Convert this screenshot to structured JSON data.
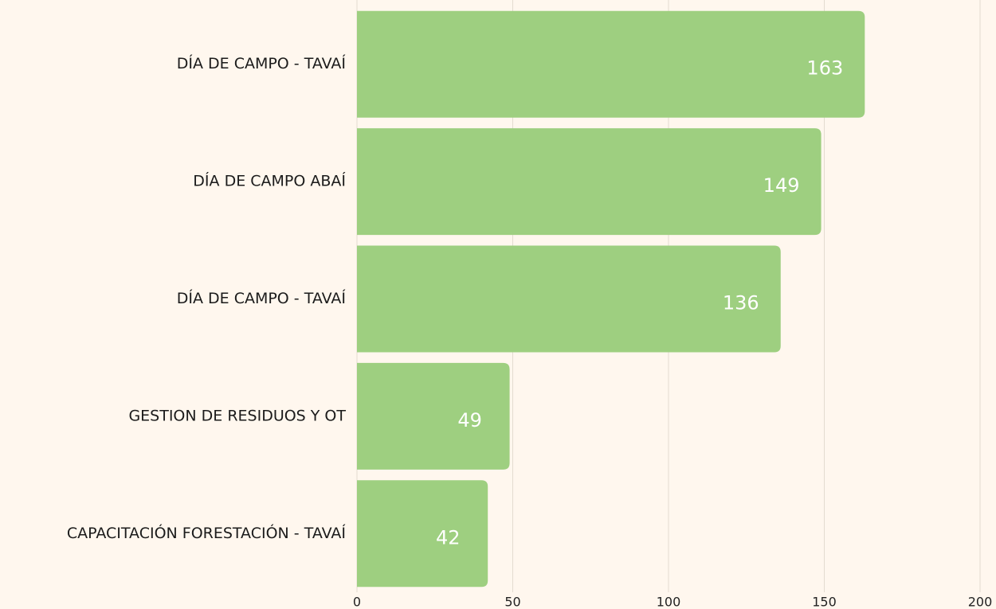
{
  "chart_data": {
    "type": "bar",
    "orientation": "horizontal",
    "categories": [
      "DÍA DE CAMPO - TAVAÍ",
      "DÍA DE CAMPO ABAÍ",
      "DÍA DE CAMPO - TAVAÍ",
      "GESTION DE RESIDUOS Y OT",
      "CAPACITACIÓN FORESTACIÓN - TAVAÍ"
    ],
    "values": [
      163,
      149,
      136,
      49,
      42
    ],
    "color": "#9ecf80",
    "xlim": [
      0,
      200
    ],
    "xticks": [
      0,
      50,
      100,
      150,
      200
    ],
    "grid": true
  }
}
